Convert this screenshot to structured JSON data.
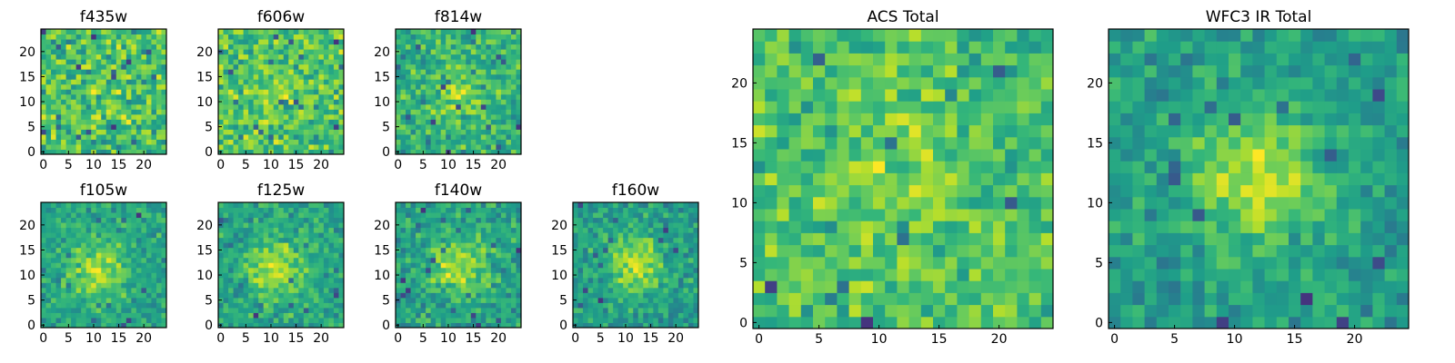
{
  "chart_data": [
    {
      "type": "heatmap",
      "title": "f435w",
      "grid": false,
      "colormap": "viridis",
      "xticks": [
        "0",
        "5",
        "10",
        "15",
        "20"
      ],
      "yticks": [
        "0",
        "5",
        "10",
        "15",
        "20"
      ],
      "xlim": [
        0,
        25
      ],
      "ylim": [
        0,
        25
      ],
      "size": 25,
      "peak_center": [
        12,
        12
      ],
      "peak_strength": 0.05,
      "noise_seed": 11
    },
    {
      "type": "heatmap",
      "title": "f606w",
      "grid": false,
      "colormap": "viridis",
      "xticks": [
        "0",
        "5",
        "10",
        "15",
        "20"
      ],
      "yticks": [
        "0",
        "5",
        "10",
        "15",
        "20"
      ],
      "xlim": [
        0,
        25
      ],
      "ylim": [
        0,
        25
      ],
      "size": 25,
      "peak_center": [
        12,
        12
      ],
      "peak_strength": 0.1,
      "noise_seed": 23
    },
    {
      "type": "heatmap",
      "title": "f814w",
      "grid": false,
      "colormap": "viridis",
      "xticks": [
        "0",
        "5",
        "10",
        "15",
        "20"
      ],
      "yticks": [
        "0",
        "5",
        "10",
        "15",
        "20"
      ],
      "xlim": [
        0,
        25
      ],
      "ylim": [
        0,
        25
      ],
      "size": 25,
      "peak_center": [
        12,
        12
      ],
      "peak_strength": 0.25,
      "noise_seed": 37
    },
    {
      "type": "heatmap",
      "title": "f105w",
      "grid": false,
      "colormap": "viridis",
      "xticks": [
        "0",
        "5",
        "10",
        "15",
        "20"
      ],
      "yticks": [
        "0",
        "5",
        "10",
        "15",
        "20"
      ],
      "xlim": [
        0,
        25
      ],
      "ylim": [
        0,
        25
      ],
      "size": 25,
      "peak_center": [
        11,
        11
      ],
      "peak_strength": 0.55,
      "noise_seed": 41
    },
    {
      "type": "heatmap",
      "title": "f125w",
      "grid": false,
      "colormap": "viridis",
      "xticks": [
        "0",
        "5",
        "10",
        "15",
        "20"
      ],
      "yticks": [
        "0",
        "5",
        "10",
        "15",
        "20"
      ],
      "xlim": [
        0,
        25
      ],
      "ylim": [
        0,
        25
      ],
      "size": 25,
      "peak_center": [
        11,
        11
      ],
      "peak_strength": 0.55,
      "noise_seed": 53
    },
    {
      "type": "heatmap",
      "title": "f140w",
      "grid": false,
      "colormap": "viridis",
      "xticks": [
        "0",
        "5",
        "10",
        "15",
        "20"
      ],
      "yticks": [
        "0",
        "5",
        "10",
        "15",
        "20"
      ],
      "xlim": [
        0,
        25
      ],
      "ylim": [
        0,
        25
      ],
      "size": 25,
      "peak_center": [
        12,
        12
      ],
      "peak_strength": 0.55,
      "noise_seed": 67
    },
    {
      "type": "heatmap",
      "title": "f160w",
      "grid": false,
      "colormap": "viridis",
      "xticks": [
        "0",
        "5",
        "10",
        "15",
        "20"
      ],
      "yticks": [
        "0",
        "5",
        "10",
        "15",
        "20"
      ],
      "xlim": [
        0,
        25
      ],
      "ylim": [
        0,
        25
      ],
      "size": 25,
      "peak_center": [
        12,
        12
      ],
      "peak_strength": 0.6,
      "noise_seed": 79
    },
    {
      "type": "heatmap",
      "title": "ACS Total",
      "grid": false,
      "colormap": "viridis",
      "xticks": [
        "0",
        "5",
        "10",
        "15",
        "20"
      ],
      "yticks": [
        "0",
        "5",
        "10",
        "15",
        "20"
      ],
      "xlim": [
        0,
        25
      ],
      "ylim": [
        0,
        25
      ],
      "size": 25,
      "peak_center": [
        12,
        12
      ],
      "peak_strength": 0.15,
      "noise_seed": 97
    },
    {
      "type": "heatmap",
      "title": "WFC3 IR Total",
      "grid": false,
      "colormap": "viridis",
      "xticks": [
        "0",
        "5",
        "10",
        "15",
        "20"
      ],
      "yticks": [
        "0",
        "5",
        "10",
        "15",
        "20"
      ],
      "xlim": [
        0,
        25
      ],
      "ylim": [
        0,
        25
      ],
      "size": 25,
      "peak_center": [
        12,
        12
      ],
      "peak_strength": 0.7,
      "noise_seed": 131
    }
  ]
}
